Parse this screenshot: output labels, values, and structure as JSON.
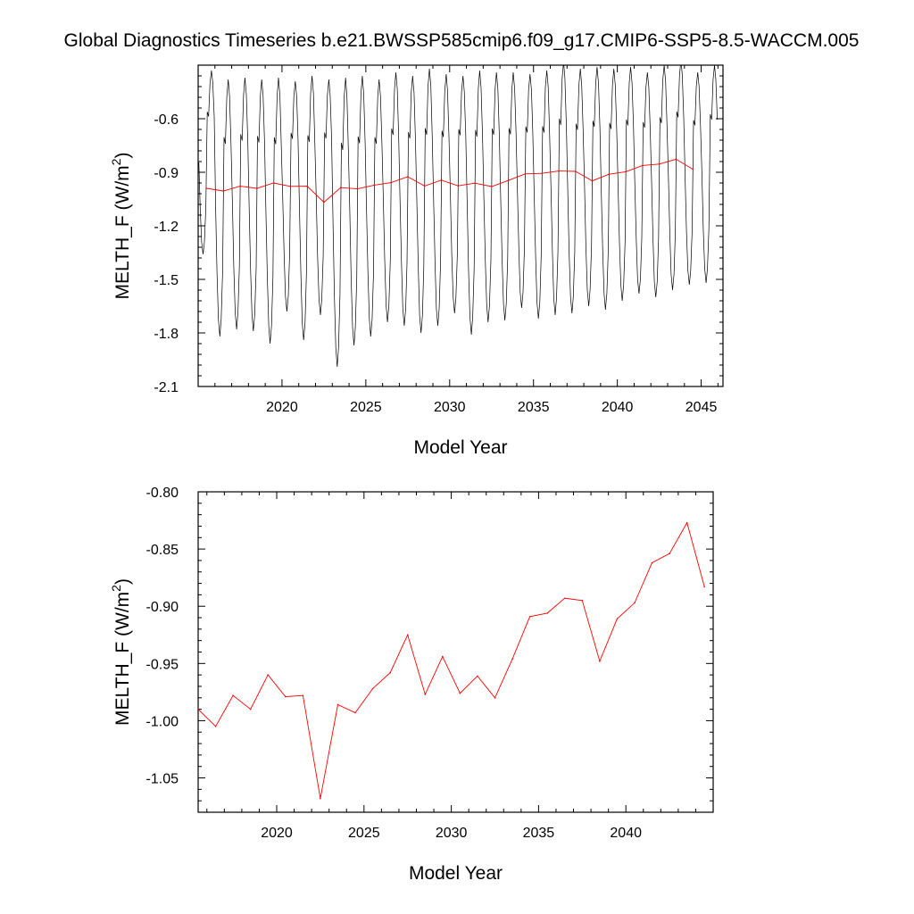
{
  "title": "Global Diagnostics Timeseries b.e21.BWSSP585cmip6.f09_g17.CMIP6-SSP5-8.5-WACCM.005",
  "chart_data": [
    {
      "type": "line",
      "xlabel": "Model Year",
      "ylabel": "MELTH_F (W/m²)",
      "ylabel_parts": {
        "main": "MELTH_F (W/m",
        "sup": "2",
        "close": ")"
      },
      "xlim": [
        2015,
        2046.3
      ],
      "ylim": [
        -2.1,
        -0.3
      ],
      "xticks": [
        2020,
        2025,
        2030,
        2035,
        2040,
        2045
      ],
      "yticks": [
        -2.1,
        -1.8,
        -1.5,
        -1.2,
        -0.9,
        -0.6
      ],
      "ytick_labels": [
        "-2.1",
        "-1.8",
        "-1.5",
        "-1.2",
        "-0.9",
        "-0.6"
      ],
      "grid": false,
      "monthly_series": {
        "color": "#000000",
        "min_values": [
          -1.36,
          -1.82,
          -1.78,
          -1.79,
          -1.86,
          -1.68,
          -1.84,
          -1.7,
          -1.99,
          -1.87,
          -1.82,
          -1.74,
          -1.76,
          -1.8,
          -1.76,
          -1.69,
          -1.81,
          -1.74,
          -1.73,
          -1.66,
          -1.72,
          -1.7,
          -1.69,
          -1.65,
          -1.67,
          -1.62,
          -1.58,
          -1.6,
          -1.56,
          -1.53,
          -1.52
        ],
        "max_values": [
          -0.33,
          -0.38,
          -0.37,
          -0.38,
          -0.37,
          -0.39,
          -0.36,
          -0.38,
          -0.37,
          -0.36,
          -0.38,
          -0.34,
          -0.36,
          -0.32,
          -0.35,
          -0.36,
          -0.33,
          -0.34,
          -0.34,
          -0.35,
          -0.33,
          -0.28,
          -0.32,
          -0.31,
          -0.32,
          -0.31,
          -0.34,
          -0.3,
          -0.27,
          -0.34,
          -0.3
        ]
      },
      "series": [
        {
          "color": "#ff0000",
          "x": [
            2015.5,
            2016.5,
            2017.5,
            2018.5,
            2019.5,
            2020.5,
            2021.5,
            2022.5,
            2023.5,
            2024.5,
            2025.5,
            2026.5,
            2027.5,
            2028.5,
            2029.5,
            2030.5,
            2031.5,
            2032.5,
            2033.5,
            2034.5,
            2035.5,
            2036.5,
            2037.5,
            2038.5,
            2039.5,
            2040.5,
            2041.5,
            2042.5,
            2043.5,
            2044.5
          ],
          "values": [
            -0.99,
            -1.005,
            -0.978,
            -0.99,
            -0.96,
            -0.979,
            -0.978,
            -1.068,
            -0.986,
            -0.993,
            -0.972,
            -0.958,
            -0.925,
            -0.977,
            -0.944,
            -0.976,
            -0.961,
            -0.98,
            -0.946,
            -0.909,
            -0.906,
            -0.893,
            -0.895,
            -0.948,
            -0.911,
            -0.897,
            -0.862,
            -0.854,
            -0.827,
            -0.883
          ]
        }
      ]
    },
    {
      "type": "line",
      "xlabel": "Model Year",
      "ylabel": "MELTH_F (W/m²)",
      "ylabel_parts": {
        "main": "MELTH_F (W/m",
        "sup": "2",
        "close": ")"
      },
      "xlim": [
        2015.5,
        2045
      ],
      "ylim": [
        -1.08,
        -0.8
      ],
      "xticks": [
        2020,
        2025,
        2030,
        2035,
        2040
      ],
      "yticks": [
        -1.05,
        -1.0,
        -0.95,
        -0.9,
        -0.85,
        -0.8
      ],
      "ytick_labels": [
        "-1.05",
        "-1.00",
        "-0.95",
        "-0.90",
        "-0.85",
        "-0.80"
      ],
      "grid": false,
      "series": [
        {
          "color": "#ff0000",
          "x": [
            2015.5,
            2016.5,
            2017.5,
            2018.5,
            2019.5,
            2020.5,
            2021.5,
            2022.5,
            2023.5,
            2024.5,
            2025.5,
            2026.5,
            2027.5,
            2028.5,
            2029.5,
            2030.5,
            2031.5,
            2032.5,
            2033.5,
            2034.5,
            2035.5,
            2036.5,
            2037.5,
            2038.5,
            2039.5,
            2040.5,
            2041.5,
            2042.5,
            2043.5,
            2044.5
          ],
          "values": [
            -0.99,
            -1.005,
            -0.978,
            -0.99,
            -0.96,
            -0.979,
            -0.978,
            -1.068,
            -0.986,
            -0.993,
            -0.972,
            -0.958,
            -0.925,
            -0.977,
            -0.944,
            -0.976,
            -0.961,
            -0.98,
            -0.946,
            -0.909,
            -0.906,
            -0.893,
            -0.895,
            -0.948,
            -0.911,
            -0.897,
            -0.862,
            -0.854,
            -0.827,
            -0.883
          ]
        }
      ]
    }
  ]
}
